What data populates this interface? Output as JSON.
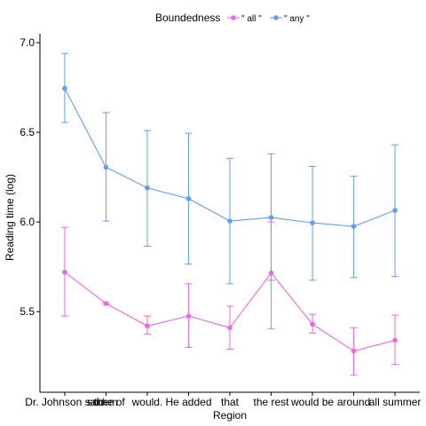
{
  "chart_data": {
    "type": "line",
    "xlabel": "Region",
    "ylabel": "Reading time (log)",
    "ylim": [
      5.05,
      7.05
    ],
    "yticks": [
      5.5,
      6.0,
      6.5,
      7.0
    ],
    "ytick_labels": [
      "5.5",
      "6.0",
      "6.5",
      "7.0"
    ],
    "categories": [
      "Dr. Johnson said",
      "some of",
      "them",
      "would.",
      "He added",
      "that",
      "the rest",
      "would be",
      "around",
      "all summer"
    ],
    "category_positions": [
      1,
      2,
      2,
      3,
      4,
      5,
      6,
      7,
      8,
      9
    ],
    "x": [
      1,
      2,
      3,
      4,
      5,
      6,
      7,
      8,
      9
    ],
    "grid": false,
    "legend": {
      "title": "Boundedness",
      "position": "top",
      "entries": [
        "\" all \"",
        "\" any \""
      ]
    },
    "series": [
      {
        "name": "\" all \"",
        "color": "#F564E3",
        "values": [
          5.72,
          5.545,
          5.42,
          5.475,
          5.41,
          5.715,
          5.43,
          5.28,
          5.34
        ],
        "err_low": [
          5.475,
          5.54,
          5.375,
          5.3,
          5.29,
          5.405,
          5.38,
          5.145,
          5.205
        ],
        "err_high": [
          5.97,
          5.55,
          5.475,
          5.655,
          5.53,
          6.0,
          5.485,
          5.41,
          5.48
        ]
      },
      {
        "name": "\" any \"",
        "color": "#619CFF",
        "values": [
          6.745,
          6.305,
          6.19,
          6.13,
          6.005,
          6.025,
          5.995,
          5.975,
          6.065
        ],
        "err_low": [
          6.555,
          6.005,
          5.865,
          5.765,
          5.655,
          5.675,
          5.675,
          5.69,
          5.695
        ],
        "err_high": [
          6.94,
          6.61,
          6.51,
          6.495,
          6.355,
          6.38,
          6.31,
          6.255,
          6.43
        ]
      }
    ]
  }
}
